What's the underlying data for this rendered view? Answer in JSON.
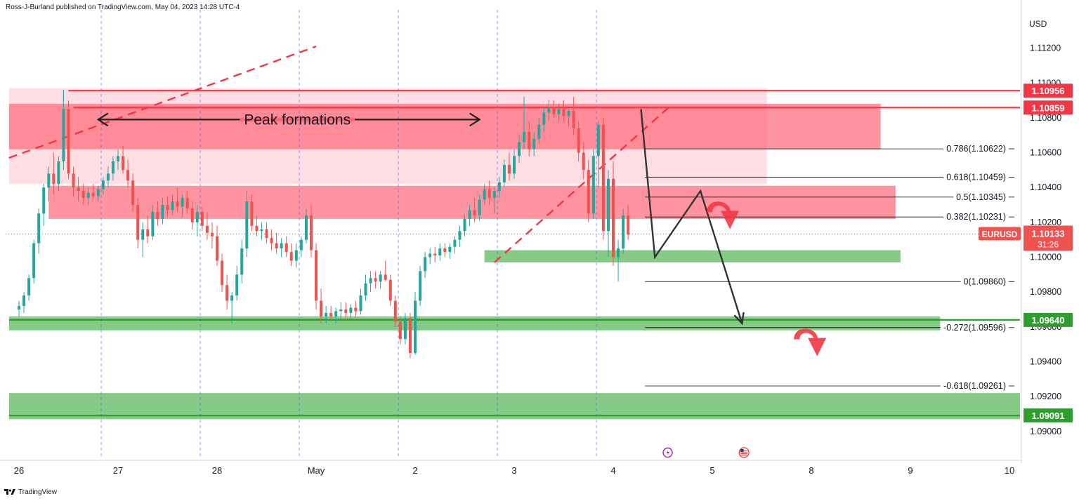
{
  "header": {
    "publisher": "Ross-J-Burland published on TradingView.com, May 04, 2023 14:28 UTC-4"
  },
  "currency": "USD",
  "footer": {
    "brand": "TradingView",
    "logo_icon": "tradingview-logo-icon"
  },
  "colors": {
    "bull": "#26a69a",
    "bear": "#ef5350",
    "resistance_zone": "#ff6b7d",
    "resistance_zone_light": "#ffd6dc",
    "support_zone": "#5cb85c",
    "level_red": "#f23645",
    "level_green": "#2e9e2e",
    "grid": "#2962ff",
    "fib": "#000000"
  },
  "chart_data": {
    "type": "candlestick",
    "symbol": "EURUSD",
    "last_price": "1.10133",
    "countdown": "31:26",
    "ylim": [
      1.0885,
      1.1142
    ],
    "y_ticks": [
      "1.11200",
      "1.11000",
      "1.10800",
      "1.10600",
      "1.10400",
      "1.10200",
      "1.10000",
      "1.09800",
      "1.09600",
      "1.09400",
      "1.09200",
      "1.09000"
    ],
    "y_tick_values": [
      1.112,
      1.11,
      1.108,
      1.106,
      1.104,
      1.102,
      1.1,
      1.098,
      1.096,
      1.094,
      1.092,
      1.09
    ],
    "x_ticks": [
      {
        "label": "26",
        "day": 0
      },
      {
        "label": "27",
        "day": 1
      },
      {
        "label": "28",
        "day": 2
      },
      {
        "label": "May",
        "day": 3
      },
      {
        "label": "2",
        "day": 4
      },
      {
        "label": "3",
        "day": 5
      },
      {
        "label": "4",
        "day": 6
      },
      {
        "label": "5",
        "day": 7
      },
      {
        "label": "8",
        "day": 8
      },
      {
        "label": "9",
        "day": 9
      },
      {
        "label": "10",
        "day": 10
      }
    ],
    "session_lines": [
      0.83,
      1.83,
      2.83,
      3.83,
      4.83,
      5.83
    ],
    "price_tags": [
      {
        "label": "1.10956",
        "value": 1.10956,
        "color": "#f23645"
      },
      {
        "label": "1.10859",
        "value": 1.10859,
        "color": "#f23645"
      },
      {
        "label": "1.09640",
        "value": 1.0964,
        "color": "#2e9e2e"
      },
      {
        "label": "1.09091",
        "value": 1.09091,
        "color": "#2e9e2e"
      }
    ],
    "horizontal_levels": [
      {
        "value": 1.10956,
        "from_day": 0.5,
        "color": "#f23645"
      },
      {
        "value": 1.10859,
        "from_day": 0.55,
        "color": "#f23645"
      },
      {
        "value": 1.0964,
        "from_day": -0.1,
        "color": "#2e9e2e"
      },
      {
        "value": 1.09091,
        "from_day": -0.1,
        "color": "#2e9e2e"
      }
    ],
    "zones": [
      {
        "kind": "resistance",
        "shade": "light",
        "top": 1.1097,
        "bottom": 1.1042,
        "from_day": -0.1,
        "to_day": 7.55
      },
      {
        "kind": "resistance",
        "shade": "dark",
        "top": 1.1088,
        "bottom": 1.1062,
        "from_day": -0.1,
        "to_day": 8.7
      },
      {
        "kind": "resistance",
        "shade": "dark",
        "top": 1.1041,
        "bottom": 1.1022,
        "from_day": 0.3,
        "to_day": 8.85
      },
      {
        "kind": "support",
        "top": 1.1004,
        "bottom": 1.0997,
        "from_day": 4.7,
        "to_day": 8.9
      },
      {
        "kind": "support",
        "top": 1.0966,
        "bottom": 1.0958,
        "from_day": -0.1,
        "to_day": 9.3
      },
      {
        "kind": "support",
        "top": 1.0922,
        "bottom": 1.0907,
        "from_day": -0.1,
        "to_day": 10.2
      }
    ],
    "fib_levels": [
      {
        "label": "0.786(1.10622)",
        "value": 1.10622
      },
      {
        "label": "0.618(1.10459)",
        "value": 1.10459
      },
      {
        "label": "0.5(1.10345)",
        "value": 1.10345
      },
      {
        "label": "0.382(1.10231)",
        "value": 1.10231
      },
      {
        "label": "0(1.09860)",
        "value": 1.0986
      },
      {
        "label": "-0.272(1.09596)",
        "value": 1.09596
      },
      {
        "label": "-0.618(1.09261)",
        "value": 1.09261
      }
    ],
    "fib_start_day": 6.32,
    "annotation": {
      "text": "Peak formations",
      "value": 1.1079,
      "arrow_from_day": 0.8,
      "arrow_to_day": 4.65
    },
    "trendlines": [
      {
        "from": [
          -0.1,
          1.1057
        ],
        "to": [
          3.0,
          1.1121
        ],
        "dashed": true
      },
      {
        "from": [
          4.8,
          1.0997
        ],
        "to": [
          6.6,
          1.1088
        ],
        "dashed": true
      }
    ],
    "projection": [
      [
        6.28,
        1.1085
      ],
      [
        6.42,
        1.1
      ],
      [
        6.88,
        1.1038
      ],
      [
        7.3,
        1.0962
      ]
    ],
    "curved_arrows": [
      {
        "center": [
          7.1,
          1.1025
        ],
        "color": "#f23645"
      },
      {
        "center": [
          7.98,
          1.0952
        ],
        "color": "#f23645"
      }
    ],
    "event_markers": [
      {
        "icon": "lightning-icon",
        "day": 6.55
      },
      {
        "icon": "us-flag-icon",
        "day": 7.32
      }
    ],
    "candles": [
      {
        "d": 0.0,
        "o": 1.097,
        "h": 1.0975,
        "l": 1.0966,
        "c": 1.0972
      },
      {
        "d": 0.05,
        "o": 1.0972,
        "h": 1.098,
        "l": 1.0968,
        "c": 1.0978
      },
      {
        "d": 0.1,
        "o": 1.0978,
        "h": 1.099,
        "l": 1.0975,
        "c": 1.0988
      },
      {
        "d": 0.15,
        "o": 1.0988,
        "h": 1.101,
        "l": 1.0985,
        "c": 1.1008
      },
      {
        "d": 0.2,
        "o": 1.1008,
        "h": 1.1028,
        "l": 1.1002,
        "c": 1.1025
      },
      {
        "d": 0.25,
        "o": 1.1025,
        "h": 1.1042,
        "l": 1.1018,
        "c": 1.104
      },
      {
        "d": 0.3,
        "o": 1.104,
        "h": 1.1052,
        "l": 1.1032,
        "c": 1.1048
      },
      {
        "d": 0.35,
        "o": 1.1048,
        "h": 1.106,
        "l": 1.1036,
        "c": 1.1042
      },
      {
        "d": 0.4,
        "o": 1.1042,
        "h": 1.1058,
        "l": 1.1038,
        "c": 1.1055
      },
      {
        "d": 0.45,
        "o": 1.1055,
        "h": 1.1096,
        "l": 1.105,
        "c": 1.1085
      },
      {
        "d": 0.5,
        "o": 1.1085,
        "h": 1.109,
        "l": 1.1045,
        "c": 1.1048
      },
      {
        "d": 0.55,
        "o": 1.1048,
        "h": 1.1052,
        "l": 1.1035,
        "c": 1.104
      },
      {
        "d": 0.6,
        "o": 1.104,
        "h": 1.1046,
        "l": 1.1032,
        "c": 1.1038
      },
      {
        "d": 0.65,
        "o": 1.1038,
        "h": 1.1042,
        "l": 1.103,
        "c": 1.1034
      },
      {
        "d": 0.7,
        "o": 1.1034,
        "h": 1.104,
        "l": 1.103,
        "c": 1.1037
      },
      {
        "d": 0.75,
        "o": 1.1037,
        "h": 1.1042,
        "l": 1.1033,
        "c": 1.1035
      },
      {
        "d": 0.8,
        "o": 1.1035,
        "h": 1.1041,
        "l": 1.1032,
        "c": 1.1039
      },
      {
        "d": 0.85,
        "o": 1.1039,
        "h": 1.1046,
        "l": 1.1036,
        "c": 1.1044
      },
      {
        "d": 0.9,
        "o": 1.1044,
        "h": 1.1052,
        "l": 1.104,
        "c": 1.1048
      },
      {
        "d": 0.95,
        "o": 1.1048,
        "h": 1.1058,
        "l": 1.1044,
        "c": 1.1055
      },
      {
        "d": 1.0,
        "o": 1.1055,
        "h": 1.1062,
        "l": 1.105,
        "c": 1.1058
      },
      {
        "d": 1.05,
        "o": 1.1058,
        "h": 1.1064,
        "l": 1.1048,
        "c": 1.105
      },
      {
        "d": 1.1,
        "o": 1.105,
        "h": 1.1056,
        "l": 1.104,
        "c": 1.1044
      },
      {
        "d": 1.15,
        "o": 1.1044,
        "h": 1.1048,
        "l": 1.1026,
        "c": 1.103
      },
      {
        "d": 1.2,
        "o": 1.103,
        "h": 1.1034,
        "l": 1.1005,
        "c": 1.101
      },
      {
        "d": 1.25,
        "o": 1.101,
        "h": 1.102,
        "l": 1.1,
        "c": 1.1016
      },
      {
        "d": 1.3,
        "o": 1.1016,
        "h": 1.1024,
        "l": 1.1008,
        "c": 1.1012
      },
      {
        "d": 1.35,
        "o": 1.1012,
        "h": 1.103,
        "l": 1.101,
        "c": 1.1026
      },
      {
        "d": 1.4,
        "o": 1.1026,
        "h": 1.1032,
        "l": 1.1018,
        "c": 1.1022
      },
      {
        "d": 1.45,
        "o": 1.1022,
        "h": 1.1034,
        "l": 1.1019,
        "c": 1.103
      },
      {
        "d": 1.5,
        "o": 1.103,
        "h": 1.1035,
        "l": 1.1023,
        "c": 1.1027
      },
      {
        "d": 1.55,
        "o": 1.1027,
        "h": 1.1036,
        "l": 1.1024,
        "c": 1.1032
      },
      {
        "d": 1.6,
        "o": 1.1032,
        "h": 1.104,
        "l": 1.1026,
        "c": 1.1029
      },
      {
        "d": 1.65,
        "o": 1.1029,
        "h": 1.1036,
        "l": 1.1023,
        "c": 1.1034
      },
      {
        "d": 1.7,
        "o": 1.1034,
        "h": 1.1038,
        "l": 1.1025,
        "c": 1.1028
      },
      {
        "d": 1.75,
        "o": 1.1028,
        "h": 1.1032,
        "l": 1.1016,
        "c": 1.102
      },
      {
        "d": 1.8,
        "o": 1.102,
        "h": 1.103,
        "l": 1.1012,
        "c": 1.1026
      },
      {
        "d": 1.85,
        "o": 1.1026,
        "h": 1.1029,
        "l": 1.1015,
        "c": 1.1018
      },
      {
        "d": 1.9,
        "o": 1.1018,
        "h": 1.1026,
        "l": 1.101,
        "c": 1.1014
      },
      {
        "d": 1.95,
        "o": 1.1014,
        "h": 1.102,
        "l": 1.1005,
        "c": 1.1012
      },
      {
        "d": 2.0,
        "o": 1.1012,
        "h": 1.1018,
        "l": 1.0995,
        "c": 1.0998
      },
      {
        "d": 2.05,
        "o": 1.0998,
        "h": 1.1002,
        "l": 1.098,
        "c": 1.0984
      },
      {
        "d": 2.1,
        "o": 1.0984,
        "h": 1.099,
        "l": 1.097,
        "c": 1.0975
      },
      {
        "d": 2.15,
        "o": 1.0975,
        "h": 1.098,
        "l": 1.0962,
        "c": 1.0978
      },
      {
        "d": 2.2,
        "o": 1.0978,
        "h": 1.0995,
        "l": 1.0975,
        "c": 1.099
      },
      {
        "d": 2.25,
        "o": 1.099,
        "h": 1.101,
        "l": 1.0985,
        "c": 1.1005
      },
      {
        "d": 2.3,
        "o": 1.1005,
        "h": 1.1038,
        "l": 1.1,
        "c": 1.1032
      },
      {
        "d": 2.35,
        "o": 1.1032,
        "h": 1.1036,
        "l": 1.1015,
        "c": 1.1018
      },
      {
        "d": 2.4,
        "o": 1.1018,
        "h": 1.1024,
        "l": 1.1012,
        "c": 1.1015
      },
      {
        "d": 2.45,
        "o": 1.1015,
        "h": 1.102,
        "l": 1.101,
        "c": 1.1016
      },
      {
        "d": 2.5,
        "o": 1.1016,
        "h": 1.102,
        "l": 1.1008,
        "c": 1.1011
      },
      {
        "d": 2.55,
        "o": 1.1011,
        "h": 1.1016,
        "l": 1.1004,
        "c": 1.1008
      },
      {
        "d": 2.6,
        "o": 1.1008,
        "h": 1.1014,
        "l": 1.1002,
        "c": 1.1005
      },
      {
        "d": 2.65,
        "o": 1.1005,
        "h": 1.1011,
        "l": 1.1,
        "c": 1.1008
      },
      {
        "d": 2.7,
        "o": 1.1008,
        "h": 1.1012,
        "l": 1.1,
        "c": 1.1003
      },
      {
        "d": 2.75,
        "o": 1.1003,
        "h": 1.1008,
        "l": 1.0995,
        "c": 1.0998
      },
      {
        "d": 2.8,
        "o": 1.0998,
        "h": 1.1008,
        "l": 1.0994,
        "c": 1.1004
      },
      {
        "d": 2.85,
        "o": 1.1004,
        "h": 1.1012,
        "l": 1.1,
        "c": 1.101
      },
      {
        "d": 2.9,
        "o": 1.101,
        "h": 1.1028,
        "l": 1.1008,
        "c": 1.1024
      },
      {
        "d": 2.95,
        "o": 1.1024,
        "h": 1.103,
        "l": 1.1,
        "c": 1.1004
      },
      {
        "d": 3.0,
        "o": 1.1004,
        "h": 1.1008,
        "l": 1.097,
        "c": 1.0975
      },
      {
        "d": 3.05,
        "o": 1.0975,
        "h": 1.0982,
        "l": 1.0962,
        "c": 1.0966
      },
      {
        "d": 3.1,
        "o": 1.0966,
        "h": 1.0972,
        "l": 1.0962,
        "c": 1.0968
      },
      {
        "d": 3.15,
        "o": 1.0968,
        "h": 1.0972,
        "l": 1.0963,
        "c": 1.0966
      },
      {
        "d": 3.2,
        "o": 1.0966,
        "h": 1.0971,
        "l": 1.0962,
        "c": 1.0969
      },
      {
        "d": 3.25,
        "o": 1.0969,
        "h": 1.0974,
        "l": 1.0964,
        "c": 1.097
      },
      {
        "d": 3.3,
        "o": 1.097,
        "h": 1.0974,
        "l": 1.0965,
        "c": 1.0968
      },
      {
        "d": 3.35,
        "o": 1.0968,
        "h": 1.0973,
        "l": 1.0964,
        "c": 1.0971
      },
      {
        "d": 3.4,
        "o": 1.0971,
        "h": 1.0975,
        "l": 1.0966,
        "c": 1.0969
      },
      {
        "d": 3.45,
        "o": 1.0969,
        "h": 1.0982,
        "l": 1.0967,
        "c": 1.0978
      },
      {
        "d": 3.5,
        "o": 1.0978,
        "h": 1.099,
        "l": 1.0975,
        "c": 1.0985
      },
      {
        "d": 3.55,
        "o": 1.0985,
        "h": 1.0992,
        "l": 1.098,
        "c": 1.0988
      },
      {
        "d": 3.6,
        "o": 1.0988,
        "h": 1.0992,
        "l": 1.0982,
        "c": 1.0986
      },
      {
        "d": 3.65,
        "o": 1.0986,
        "h": 1.0992,
        "l": 1.0982,
        "c": 1.099
      },
      {
        "d": 3.7,
        "o": 1.099,
        "h": 1.0998,
        "l": 1.0986,
        "c": 1.0987
      },
      {
        "d": 3.75,
        "o": 1.0987,
        "h": 1.099,
        "l": 1.0972,
        "c": 1.0975
      },
      {
        "d": 3.8,
        "o": 1.0975,
        "h": 1.0978,
        "l": 1.096,
        "c": 1.0963
      },
      {
        "d": 3.85,
        "o": 1.0963,
        "h": 1.0966,
        "l": 1.095,
        "c": 1.0953
      },
      {
        "d": 3.9,
        "o": 1.0953,
        "h": 1.0968,
        "l": 1.095,
        "c": 1.0965
      },
      {
        "d": 3.95,
        "o": 1.0965,
        "h": 1.0968,
        "l": 1.0942,
        "c": 1.0945
      },
      {
        "d": 4.0,
        "o": 1.0945,
        "h": 1.098,
        "l": 1.0944,
        "c": 1.0975
      },
      {
        "d": 4.05,
        "o": 1.0975,
        "h": 1.0995,
        "l": 1.0972,
        "c": 1.0992
      },
      {
        "d": 4.1,
        "o": 1.0992,
        "h": 1.1003,
        "l": 1.0988,
        "c": 1.1
      },
      {
        "d": 4.15,
        "o": 1.1,
        "h": 1.1005,
        "l": 1.0996,
        "c": 1.1002
      },
      {
        "d": 4.2,
        "o": 1.1002,
        "h": 1.1006,
        "l": 1.0997,
        "c": 1.1001
      },
      {
        "d": 4.25,
        "o": 1.1001,
        "h": 1.1008,
        "l": 1.0998,
        "c": 1.1005
      },
      {
        "d": 4.3,
        "o": 1.1005,
        "h": 1.1008,
        "l": 1.1,
        "c": 1.1003
      },
      {
        "d": 4.35,
        "o": 1.1003,
        "h": 1.1008,
        "l": 1.0999,
        "c": 1.1006
      },
      {
        "d": 4.4,
        "o": 1.1006,
        "h": 1.1012,
        "l": 1.1002,
        "c": 1.101
      },
      {
        "d": 4.45,
        "o": 1.101,
        "h": 1.1018,
        "l": 1.1006,
        "c": 1.1015
      },
      {
        "d": 4.5,
        "o": 1.1015,
        "h": 1.1024,
        "l": 1.1012,
        "c": 1.1022
      },
      {
        "d": 4.55,
        "o": 1.1022,
        "h": 1.103,
        "l": 1.1018,
        "c": 1.1027
      },
      {
        "d": 4.6,
        "o": 1.1027,
        "h": 1.1034,
        "l": 1.102,
        "c": 1.1024
      },
      {
        "d": 4.65,
        "o": 1.1024,
        "h": 1.1036,
        "l": 1.1021,
        "c": 1.1033
      },
      {
        "d": 4.7,
        "o": 1.1033,
        "h": 1.1042,
        "l": 1.103,
        "c": 1.1039
      },
      {
        "d": 4.75,
        "o": 1.1039,
        "h": 1.1044,
        "l": 1.103,
        "c": 1.1034
      },
      {
        "d": 4.8,
        "o": 1.1034,
        "h": 1.104,
        "l": 1.1025,
        "c": 1.1038
      },
      {
        "d": 4.85,
        "o": 1.1038,
        "h": 1.1046,
        "l": 1.1034,
        "c": 1.1043
      },
      {
        "d": 4.9,
        "o": 1.1043,
        "h": 1.1056,
        "l": 1.104,
        "c": 1.1053
      },
      {
        "d": 4.95,
        "o": 1.1053,
        "h": 1.106,
        "l": 1.1044,
        "c": 1.1048
      },
      {
        "d": 5.0,
        "o": 1.1048,
        "h": 1.1062,
        "l": 1.1045,
        "c": 1.1058
      },
      {
        "d": 5.05,
        "o": 1.1058,
        "h": 1.107,
        "l": 1.1054,
        "c": 1.1066
      },
      {
        "d": 5.1,
        "o": 1.1066,
        "h": 1.1092,
        "l": 1.1062,
        "c": 1.1072
      },
      {
        "d": 5.15,
        "o": 1.1072,
        "h": 1.1078,
        "l": 1.1058,
        "c": 1.1062
      },
      {
        "d": 5.2,
        "o": 1.1062,
        "h": 1.1072,
        "l": 1.1058,
        "c": 1.1068
      },
      {
        "d": 5.25,
        "o": 1.1068,
        "h": 1.108,
        "l": 1.1065,
        "c": 1.1076
      },
      {
        "d": 5.3,
        "o": 1.1076,
        "h": 1.1086,
        "l": 1.1072,
        "c": 1.1083
      },
      {
        "d": 5.35,
        "o": 1.1083,
        "h": 1.109,
        "l": 1.1078,
        "c": 1.1086
      },
      {
        "d": 5.4,
        "o": 1.1086,
        "h": 1.109,
        "l": 1.108,
        "c": 1.1082
      },
      {
        "d": 5.45,
        "o": 1.1082,
        "h": 1.1088,
        "l": 1.1078,
        "c": 1.1085
      },
      {
        "d": 5.5,
        "o": 1.1085,
        "h": 1.109,
        "l": 1.1078,
        "c": 1.1081
      },
      {
        "d": 5.55,
        "o": 1.1081,
        "h": 1.1086,
        "l": 1.1075,
        "c": 1.1084
      },
      {
        "d": 5.6,
        "o": 1.1084,
        "h": 1.1092,
        "l": 1.107,
        "c": 1.1074
      },
      {
        "d": 5.65,
        "o": 1.1074,
        "h": 1.1078,
        "l": 1.1055,
        "c": 1.106
      },
      {
        "d": 5.7,
        "o": 1.106,
        "h": 1.1066,
        "l": 1.1045,
        "c": 1.105
      },
      {
        "d": 5.75,
        "o": 1.105,
        "h": 1.1056,
        "l": 1.102,
        "c": 1.1025
      },
      {
        "d": 5.8,
        "o": 1.1025,
        "h": 1.1062,
        "l": 1.1022,
        "c": 1.1058
      },
      {
        "d": 5.85,
        "o": 1.1058,
        "h": 1.1078,
        "l": 1.104,
        "c": 1.1076
      },
      {
        "d": 5.9,
        "o": 1.1076,
        "h": 1.108,
        "l": 1.101,
        "c": 1.1015
      },
      {
        "d": 5.95,
        "o": 1.1015,
        "h": 1.105,
        "l": 1.1,
        "c": 1.1045
      },
      {
        "d": 6.0,
        "o": 1.1045,
        "h": 1.1055,
        "l": 1.0995,
        "c": 1.1
      },
      {
        "d": 6.05,
        "o": 1.1,
        "h": 1.101,
        "l": 1.0986,
        "c": 1.1005
      },
      {
        "d": 6.1,
        "o": 1.1005,
        "h": 1.1028,
        "l": 1.1002,
        "c": 1.1024
      },
      {
        "d": 6.15,
        "o": 1.1024,
        "h": 1.103,
        "l": 1.101,
        "c": 1.1013
      }
    ]
  }
}
